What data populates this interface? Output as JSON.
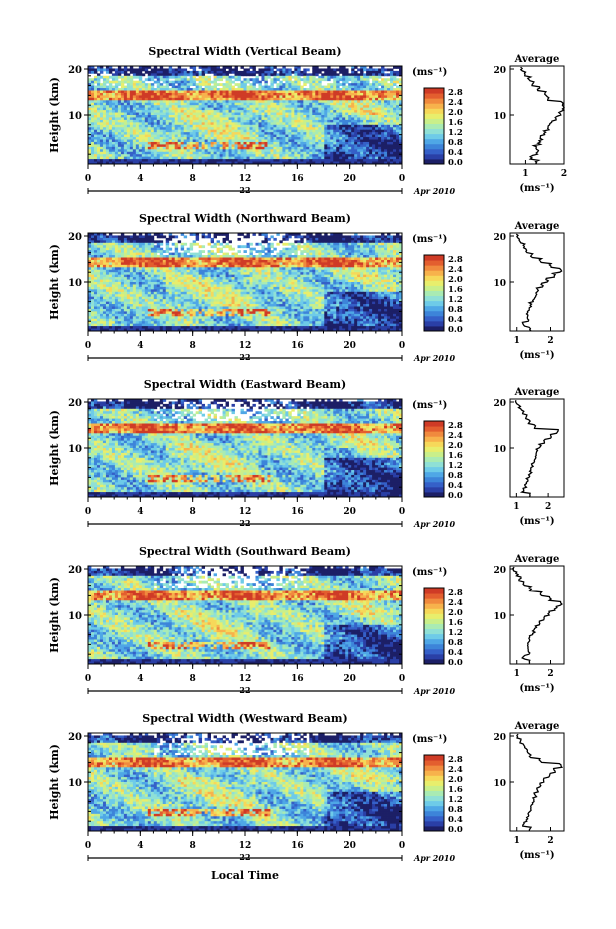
{
  "colors": {
    "colormap": [
      "#1c1f66",
      "#2a3fa6",
      "#3560c8",
      "#3d84d9",
      "#4fa7e6",
      "#6ecbe8",
      "#8fe0d6",
      "#a9ebb3",
      "#c9ef8a",
      "#e8ee6c",
      "#f6d85a",
      "#f7b24c",
      "#f08a3e",
      "#e35e2f",
      "#cf3b26"
    ],
    "line": "#000000"
  },
  "xaxis": {
    "ticks": [
      "0",
      "4",
      "8",
      "12",
      "16",
      "20",
      "0"
    ],
    "date_label": "22",
    "month_label": "Apr 2010",
    "xlabel": "Local Time"
  },
  "yaxis": {
    "label": "Height (km)",
    "ticks": [
      "20",
      "10"
    ]
  },
  "colorbar": {
    "unit": "(ms⁻¹)",
    "ticks": [
      "2.8",
      "2.4",
      "2.0",
      "1.6",
      "1.2",
      "0.8",
      "0.4",
      "0.0"
    ]
  },
  "avg": {
    "title": "Average",
    "xlabel": "(ms⁻¹)"
  },
  "chart_data": [
    {
      "type": "heatmap",
      "title": "Spectral Width (Vertical Beam)",
      "x_range": [
        0,
        24
      ],
      "y_range": [
        0,
        20
      ],
      "color_range": [
        0.0,
        2.8
      ],
      "avg_profile": {
        "type": "line",
        "xlim": [
          0.6,
          2.0
        ],
        "x_ticks": [
          "1",
          "2"
        ],
        "y_ticks": [
          "20",
          "10"
        ],
        "height_km": [
          1,
          2,
          3,
          4,
          5,
          6,
          7,
          8,
          9,
          10,
          11,
          12,
          13,
          14,
          15,
          16,
          17,
          18,
          19,
          20
        ],
        "width": [
          1.3,
          1.15,
          1.3,
          1.25,
          1.35,
          1.4,
          1.5,
          1.6,
          1.65,
          1.8,
          1.9,
          2.0,
          1.95,
          1.6,
          1.5,
          1.35,
          1.2,
          1.1,
          1.0,
          0.9
        ]
      }
    },
    {
      "type": "heatmap",
      "title": "Spectral Width (Northward Beam)",
      "x_range": [
        0,
        24
      ],
      "y_range": [
        0,
        20
      ],
      "color_range": [
        0.0,
        2.8
      ],
      "avg_profile": {
        "type": "line",
        "xlim": [
          0.8,
          2.4
        ],
        "x_ticks": [
          "1",
          "2"
        ],
        "y_ticks": [
          "20",
          "10"
        ],
        "height_km": [
          1,
          2,
          3,
          4,
          5,
          6,
          7,
          8,
          9,
          10,
          11,
          12,
          13,
          14,
          15,
          16,
          17,
          18,
          19,
          20
        ],
        "width": [
          1.4,
          1.2,
          1.35,
          1.3,
          1.35,
          1.4,
          1.5,
          1.55,
          1.6,
          1.75,
          1.9,
          2.1,
          2.3,
          2.0,
          1.7,
          1.45,
          1.3,
          1.2,
          1.1,
          1.0
        ]
      }
    },
    {
      "type": "heatmap",
      "title": "Spectral Width (Eastward Beam)",
      "x_range": [
        0,
        24
      ],
      "y_range": [
        0,
        20
      ],
      "color_range": [
        0.0,
        2.8
      ],
      "avg_profile": {
        "type": "line",
        "xlim": [
          0.8,
          2.5
        ],
        "x_ticks": [
          "1",
          "2"
        ],
        "y_ticks": [
          "20",
          "10"
        ],
        "height_km": [
          1,
          2,
          3,
          4,
          5,
          6,
          7,
          8,
          9,
          10,
          11,
          12,
          13,
          14,
          15,
          16,
          17,
          18,
          19,
          20
        ],
        "width": [
          1.4,
          1.2,
          1.3,
          1.35,
          1.4,
          1.45,
          1.5,
          1.55,
          1.6,
          1.65,
          1.75,
          1.9,
          2.1,
          2.3,
          1.6,
          1.4,
          1.3,
          1.2,
          1.1,
          1.0
        ]
      }
    },
    {
      "type": "heatmap",
      "title": "Spectral Width (Southward Beam)",
      "x_range": [
        0,
        24
      ],
      "y_range": [
        0,
        20
      ],
      "color_range": [
        0.0,
        2.8
      ],
      "avg_profile": {
        "type": "line",
        "xlim": [
          0.8,
          2.4
        ],
        "x_ticks": [
          "1",
          "2"
        ],
        "y_ticks": [
          "20",
          "10"
        ],
        "height_km": [
          1,
          2,
          3,
          4,
          5,
          6,
          7,
          8,
          9,
          10,
          11,
          12,
          13,
          14,
          15,
          16,
          17,
          18,
          19,
          20
        ],
        "width": [
          1.4,
          1.2,
          1.35,
          1.3,
          1.35,
          1.4,
          1.5,
          1.55,
          1.65,
          1.8,
          1.95,
          2.15,
          2.3,
          2.0,
          1.7,
          1.4,
          1.2,
          1.1,
          1.0,
          0.9
        ]
      }
    },
    {
      "type": "heatmap",
      "title": "Spectral Width (Westward Beam)",
      "x_range": [
        0,
        24
      ],
      "y_range": [
        0,
        20
      ],
      "color_range": [
        0.0,
        2.8
      ],
      "avg_profile": {
        "type": "line",
        "xlim": [
          0.8,
          2.4
        ],
        "x_ticks": [
          "1",
          "2"
        ],
        "y_ticks": [
          "20",
          "10"
        ],
        "height_km": [
          1,
          2,
          3,
          4,
          5,
          6,
          7,
          8,
          9,
          10,
          11,
          12,
          13,
          14,
          15,
          16,
          17,
          18,
          19,
          20
        ],
        "width": [
          1.4,
          1.2,
          1.3,
          1.35,
          1.4,
          1.45,
          1.5,
          1.55,
          1.6,
          1.7,
          1.8,
          1.95,
          2.1,
          2.3,
          1.7,
          1.4,
          1.3,
          1.2,
          1.1,
          1.0
        ]
      }
    }
  ]
}
